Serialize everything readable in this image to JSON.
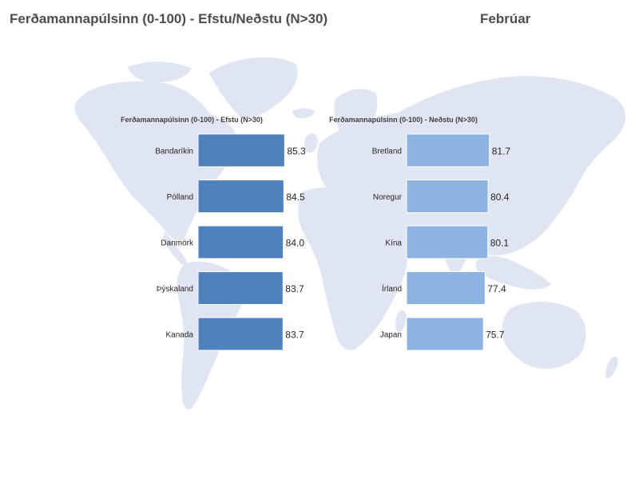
{
  "header": {
    "title": "Ferðamannapúlsinn (0-100) - Efstu/Neðstu (N>30)",
    "month": "Febrúar"
  },
  "colors": {
    "top_bar": "#4f81bd",
    "bottom_bar": "#8db3e2",
    "map_fill": "#dfe5f1"
  },
  "chart_data": [
    {
      "type": "bar",
      "orientation": "horizontal",
      "title": "Ferðamannapúlsinn (0-100) - Efstu (N>30)",
      "categories": [
        "Bandaríkin",
        "Pólland",
        "Danmörk",
        "Þýskaland",
        "Kanada"
      ],
      "values": [
        85.3,
        84.5,
        84.0,
        83.7,
        83.7
      ],
      "value_labels": [
        "85.3",
        "84.5",
        "84.0",
        "83.7",
        "83.7"
      ],
      "xlim": [
        0,
        100
      ],
      "grid": false,
      "legend": "none"
    },
    {
      "type": "bar",
      "orientation": "horizontal",
      "title": "Ferðamannapúlsinn (0-100) - Neðstu (N>30)",
      "categories": [
        "Bretland",
        "Noregur",
        "Kína",
        "Írland",
        "Japan"
      ],
      "values": [
        81.7,
        80.4,
        80.1,
        77.4,
        75.7
      ],
      "value_labels": [
        "81.7",
        "80.4",
        "80.1",
        "77.4",
        "75.7"
      ],
      "xlim": [
        0,
        100
      ],
      "grid": false,
      "legend": "none"
    }
  ]
}
